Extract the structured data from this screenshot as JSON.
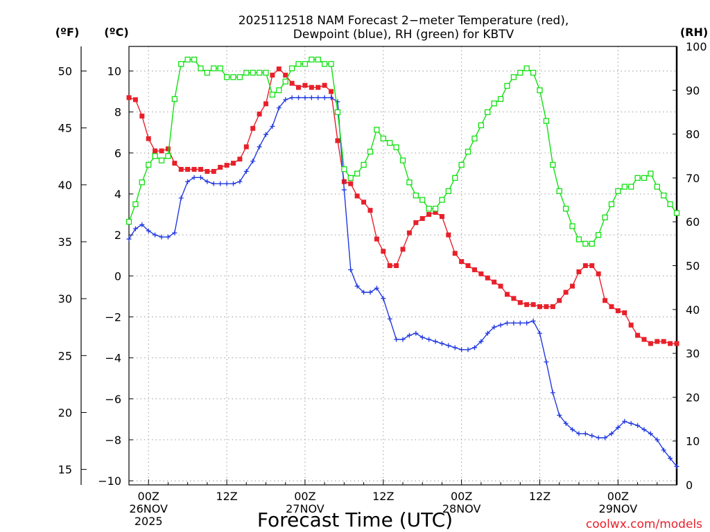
{
  "chart_data": {
    "type": "line",
    "title_line1": "2025112518 NAM Forecast 2−meter Temperature (red),",
    "title_line2": "Dewpoint (blue), RH (green) for KBTV",
    "xlabel": "Forecast Time (UTC)",
    "credit": "coolwx.com/models",
    "x_units": "hours since 2025-11-25 18Z",
    "xlim": [
      3,
      87
    ],
    "x_ticks": [
      {
        "x": 6,
        "lines": [
          "00Z",
          "26NOV",
          "2025"
        ]
      },
      {
        "x": 18,
        "lines": [
          "12Z"
        ]
      },
      {
        "x": 30,
        "lines": [
          "00Z",
          "27NOV"
        ]
      },
      {
        "x": 42,
        "lines": [
          "12Z"
        ]
      },
      {
        "x": 54,
        "lines": [
          "00Z",
          "28NOV"
        ]
      },
      {
        "x": 66,
        "lines": [
          "12Z"
        ]
      },
      {
        "x": 78,
        "lines": [
          "00Z",
          "29NOV"
        ]
      }
    ],
    "axis_f": {
      "label": "(ºF)",
      "ticks": [
        "15",
        "20",
        "25",
        "30",
        "35",
        "40",
        "45",
        "50"
      ]
    },
    "axis_c": {
      "label": "(ºC)",
      "range": [
        -10.2,
        11.2
      ],
      "ticks": [
        "−10",
        "−8",
        "−6",
        "−4",
        "−2",
        "0",
        "2",
        "4",
        "6",
        "8",
        "10"
      ]
    },
    "axis_rh": {
      "label": "(RH)",
      "range": [
        0,
        100
      ],
      "ticks": [
        "0",
        "10",
        "20",
        "30",
        "40",
        "50",
        "60",
        "70",
        "80",
        "90",
        "100"
      ]
    },
    "series": [
      {
        "name": "2-meter Temperature",
        "color": "#e8202a",
        "marker": "filled-square",
        "axis": "C",
        "x": [
          3,
          4,
          5,
          6,
          7,
          8,
          9,
          10,
          11,
          12,
          13,
          14,
          15,
          16,
          17,
          18,
          19,
          20,
          21,
          22,
          23,
          24,
          25,
          26,
          27,
          28,
          29,
          30,
          31,
          32,
          33,
          34,
          35,
          36,
          37,
          38,
          39,
          40,
          41,
          42,
          43,
          44,
          45,
          46,
          47,
          48,
          49,
          50,
          51,
          52,
          53,
          54,
          55,
          56,
          57,
          58,
          59,
          60,
          61,
          62,
          63,
          64,
          65,
          66,
          67,
          68,
          69,
          70,
          71,
          72,
          73,
          74,
          75,
          76,
          77,
          78,
          79,
          80,
          81,
          82,
          83,
          84,
          85,
          86,
          87
        ],
        "values": [
          8.7,
          8.6,
          7.8,
          6.7,
          6.1,
          6.1,
          6.2,
          5.5,
          5.2,
          5.2,
          5.2,
          5.2,
          5.1,
          5.1,
          5.3,
          5.4,
          5.5,
          5.7,
          6.3,
          7.2,
          7.9,
          8.4,
          9.8,
          10.1,
          9.8,
          9.4,
          9.2,
          9.3,
          9.2,
          9.2,
          9.3,
          9.0,
          6.6,
          4.6,
          4.5,
          3.9,
          3.6,
          3.2,
          1.8,
          1.2,
          0.5,
          0.5,
          1.3,
          2.1,
          2.6,
          2.8,
          3.0,
          3.1,
          2.9,
          2.0,
          1.1,
          0.7,
          0.5,
          0.3,
          0.1,
          -0.1,
          -0.3,
          -0.5,
          -0.9,
          -1.1,
          -1.3,
          -1.4,
          -1.4,
          -1.5,
          -1.5,
          -1.5,
          -1.2,
          -0.8,
          -0.5,
          0.2,
          0.5,
          0.5,
          0.1,
          -1.2,
          -1.5,
          -1.7,
          -1.8,
          -2.4,
          -2.9,
          -3.1,
          -3.3,
          -3.2,
          -3.2,
          -3.3,
          -3.3
        ]
      },
      {
        "name": "Dewpoint",
        "color": "#2038e0",
        "marker": "plus",
        "axis": "C",
        "x": [
          3,
          4,
          5,
          6,
          7,
          8,
          9,
          10,
          11,
          12,
          13,
          14,
          15,
          16,
          17,
          18,
          19,
          20,
          21,
          22,
          23,
          24,
          25,
          26,
          27,
          28,
          29,
          30,
          31,
          32,
          33,
          34,
          35,
          36,
          37,
          38,
          39,
          40,
          41,
          42,
          43,
          44,
          45,
          46,
          47,
          48,
          49,
          50,
          51,
          52,
          53,
          54,
          55,
          56,
          57,
          58,
          59,
          60,
          61,
          62,
          63,
          64,
          65,
          66,
          67,
          68,
          69,
          70,
          71,
          72,
          73,
          74,
          75,
          76,
          77,
          78,
          79,
          80,
          81,
          82,
          83,
          84,
          85,
          86,
          87
        ],
        "values": [
          1.8,
          2.3,
          2.5,
          2.2,
          2.0,
          1.9,
          1.9,
          2.1,
          3.8,
          4.6,
          4.8,
          4.8,
          4.6,
          4.5,
          4.5,
          4.5,
          4.5,
          4.6,
          5.1,
          5.6,
          6.3,
          6.9,
          7.3,
          8.2,
          8.6,
          8.7,
          8.7,
          8.7,
          8.7,
          8.7,
          8.7,
          8.7,
          8.5,
          4.2,
          0.3,
          -0.5,
          -0.8,
          -0.8,
          -0.6,
          -1.1,
          -2.1,
          -3.1,
          -3.1,
          -2.9,
          -2.8,
          -3.0,
          -3.1,
          -3.2,
          -3.3,
          -3.4,
          -3.5,
          -3.6,
          -3.6,
          -3.5,
          -3.2,
          -2.8,
          -2.5,
          -2.4,
          -2.3,
          -2.3,
          -2.3,
          -2.3,
          -2.2,
          -2.8,
          -4.2,
          -5.7,
          -6.8,
          -7.2,
          -7.5,
          -7.7,
          -7.7,
          -7.8,
          -7.9,
          -7.9,
          -7.7,
          -7.4,
          -7.1,
          -7.2,
          -7.3,
          -7.5,
          -7.7,
          -8.0,
          -8.5,
          -8.9,
          -9.3
        ]
      },
      {
        "name": "RH",
        "color": "#10e010",
        "marker": "open-square",
        "axis": "RH",
        "x": [
          3,
          4,
          5,
          6,
          7,
          8,
          9,
          10,
          11,
          12,
          13,
          14,
          15,
          16,
          17,
          18,
          19,
          20,
          21,
          22,
          23,
          24,
          25,
          26,
          27,
          28,
          29,
          30,
          31,
          32,
          33,
          34,
          35,
          36,
          37,
          38,
          39,
          40,
          41,
          42,
          43,
          44,
          45,
          46,
          47,
          48,
          49,
          50,
          51,
          52,
          53,
          54,
          55,
          56,
          57,
          58,
          59,
          60,
          61,
          62,
          63,
          64,
          65,
          66,
          67,
          68,
          69,
          70,
          71,
          72,
          73,
          74,
          75,
          76,
          77,
          78,
          79,
          80,
          81,
          82,
          83,
          84,
          85,
          86,
          87
        ],
        "values": [
          60,
          64,
          69,
          73,
          75,
          74,
          75,
          88,
          96,
          97,
          97,
          95,
          94,
          95,
          95,
          93,
          93,
          93,
          94,
          94,
          94,
          94,
          89,
          90,
          92,
          95,
          96,
          96,
          97,
          97,
          96,
          96,
          85,
          72,
          70,
          71,
          73,
          76,
          81,
          79,
          78,
          77,
          74,
          69,
          66,
          65,
          63,
          63,
          65,
          67,
          70,
          73,
          76,
          79,
          82,
          85,
          87,
          88,
          91,
          93,
          94,
          95,
          94,
          90,
          83,
          73,
          67,
          63,
          59,
          56,
          55,
          55,
          57,
          61,
          64,
          67,
          68,
          68,
          70,
          70,
          71,
          68,
          66,
          64,
          62
        ]
      }
    ]
  }
}
